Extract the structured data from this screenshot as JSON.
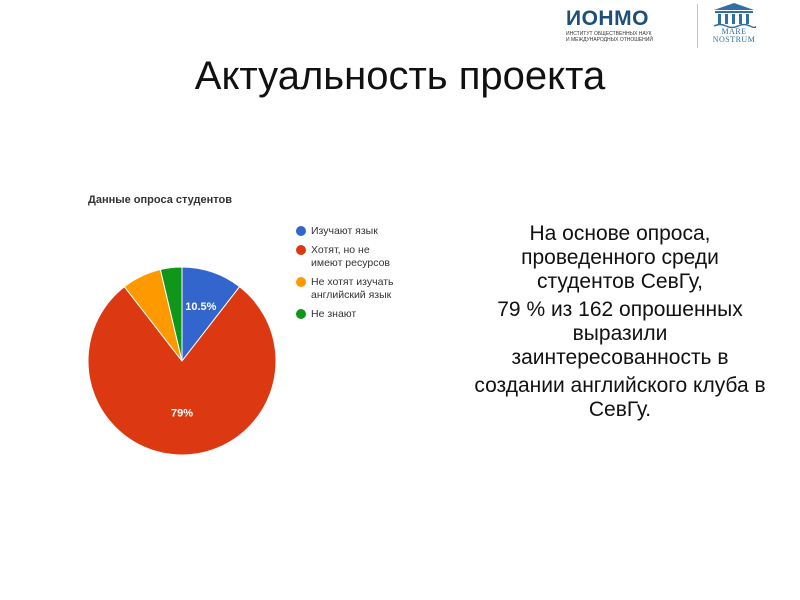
{
  "header": {
    "ionmo_logo": "ИОНМО",
    "ionmo_subtitle": "институт общественных наук\nи международных отношений",
    "mare_logo_line1": "MARE",
    "mare_logo_line2": "NOSTRUM"
  },
  "slide": {
    "title": "Актуальность проекта",
    "body_paragraphs": [
      "На основе опроса, проведенного среди студентов СевГу,",
      "79 % из 162 опрошенных выразили заинтересованность в",
      "создании английского клуба в СевГу."
    ]
  },
  "colors": {
    "blue": "#3366cc",
    "red": "#dc3912",
    "orange": "#ff9900",
    "green": "#109618",
    "logo_blue": "#1e4f7a"
  },
  "chart_data": {
    "type": "pie",
    "title": "Данные опроса студентов",
    "slices": [
      {
        "label": "Изучают язык",
        "value": 10.5,
        "color": "#3366cc",
        "data_label": "10.5%"
      },
      {
        "label": "Хотят, но не имеют ресурсов",
        "value": 79,
        "color": "#dc3912",
        "data_label": "79%"
      },
      {
        "label": "Не хотят изучать английский язык",
        "value": 6.8,
        "color": "#ff9900",
        "data_label": ""
      },
      {
        "label": "Не знают",
        "value": 3.7,
        "color": "#109618",
        "data_label": ""
      }
    ],
    "legend_position": "right"
  }
}
